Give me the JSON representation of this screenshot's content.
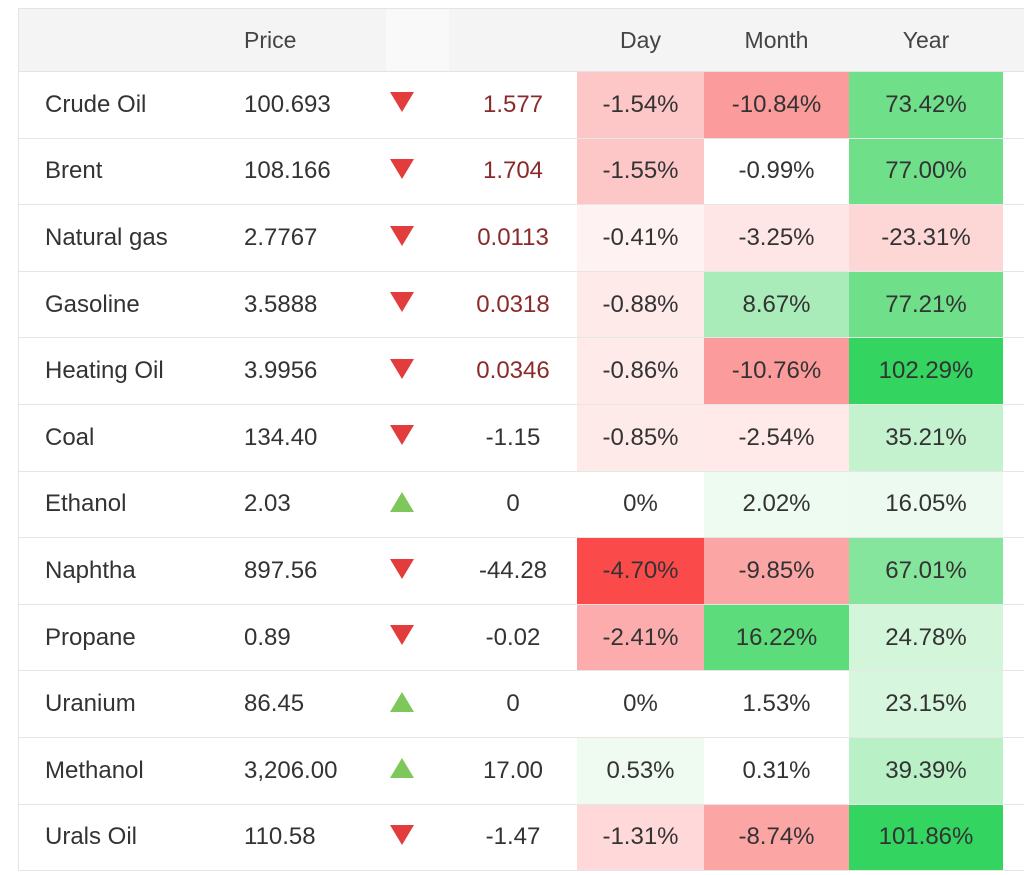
{
  "header": {
    "name": "",
    "price": "Price",
    "arrow": "",
    "change": "",
    "day": "Day",
    "month": "Month",
    "year": "Year"
  },
  "colors": {
    "down_arrow": "#e23c3c",
    "up_arrow": "#7ec75a"
  },
  "rows": [
    {
      "name": "Crude Oil",
      "price": "100.693",
      "direction": "down",
      "change": "1.577",
      "change_dark": true,
      "day": "-1.54%",
      "day_bg": "#fdc7c7",
      "month": "-10.84%",
      "month_bg": "#fb9b9b",
      "year": "73.42%",
      "year_bg": "#6fdf8a"
    },
    {
      "name": "Brent",
      "price": "108.166",
      "direction": "down",
      "change": "1.704",
      "change_dark": true,
      "day": "-1.55%",
      "day_bg": "#fdc7c7",
      "month": "-0.99%",
      "month_bg": "#ffffff",
      "year": "77.00%",
      "year_bg": "#6fdf8a"
    },
    {
      "name": "Natural gas",
      "price": "2.7767",
      "direction": "down",
      "change": "0.0113",
      "change_dark": true,
      "day": "-0.41%",
      "day_bg": "#fff2f2",
      "month": "-3.25%",
      "month_bg": "#ffe6e6",
      "year": "-23.31%",
      "year_bg": "#fdd6d6"
    },
    {
      "name": "Gasoline",
      "price": "3.5888",
      "direction": "down",
      "change": "0.0318",
      "change_dark": true,
      "day": "-0.88%",
      "day_bg": "#ffeaea",
      "month": "8.67%",
      "month_bg": "#a9ecb9",
      "year": "77.21%",
      "year_bg": "#6fdf8a"
    },
    {
      "name": "Heating Oil",
      "price": "3.9956",
      "direction": "down",
      "change": "0.0346",
      "change_dark": true,
      "day": "-0.86%",
      "day_bg": "#ffeaea",
      "month": "-10.76%",
      "month_bg": "#fb9b9b",
      "year": "102.29%",
      "year_bg": "#33d460"
    },
    {
      "name": "Coal",
      "price": "134.40",
      "direction": "down",
      "change": "-1.15",
      "change_dark": false,
      "day": "-0.85%",
      "day_bg": "#ffeaea",
      "month": "-2.54%",
      "month_bg": "#ffe9e9",
      "year": "35.21%",
      "year_bg": "#c4f2ce"
    },
    {
      "name": "Ethanol",
      "price": "2.03",
      "direction": "up",
      "change": "0",
      "change_dark": false,
      "day": "0%",
      "day_bg": "#ffffff",
      "month": "2.02%",
      "month_bg": "#edfbf0",
      "year": "16.05%",
      "year_bg": "#ecfaef"
    },
    {
      "name": "Naphtha",
      "price": "897.56",
      "direction": "down",
      "change": "-44.28",
      "change_dark": false,
      "day": "-4.70%",
      "day_bg": "#fb4a4a",
      "month": "-9.85%",
      "month_bg": "#fca5a5",
      "year": "67.01%",
      "year_bg": "#86e59c"
    },
    {
      "name": "Propane",
      "price": "0.89",
      "direction": "down",
      "change": "-0.02",
      "change_dark": false,
      "day": "-2.41%",
      "day_bg": "#fcacac",
      "month": "16.22%",
      "month_bg": "#5cdc7a",
      "year": "24.78%",
      "year_bg": "#d3f5da"
    },
    {
      "name": "Uranium",
      "price": "86.45",
      "direction": "up",
      "change": "0",
      "change_dark": false,
      "day": "0%",
      "day_bg": "#ffffff",
      "month": "1.53%",
      "month_bg": "#ffffff",
      "year": "23.15%",
      "year_bg": "#d7f6de"
    },
    {
      "name": "Methanol",
      "price": "3,206.00",
      "direction": "up",
      "change": "17.00",
      "change_dark": false,
      "day": "0.53%",
      "day_bg": "#effbf1",
      "month": "0.31%",
      "month_bg": "#ffffff",
      "year": "39.39%",
      "year_bg": "#b9f0c6"
    },
    {
      "name": "Urals Oil",
      "price": "110.58",
      "direction": "down",
      "change": "-1.47",
      "change_dark": false,
      "day": "-1.31%",
      "day_bg": "#ffd9d9",
      "month": "-8.74%",
      "month_bg": "#fca5a5",
      "year": "101.86%",
      "year_bg": "#33d460"
    }
  ]
}
